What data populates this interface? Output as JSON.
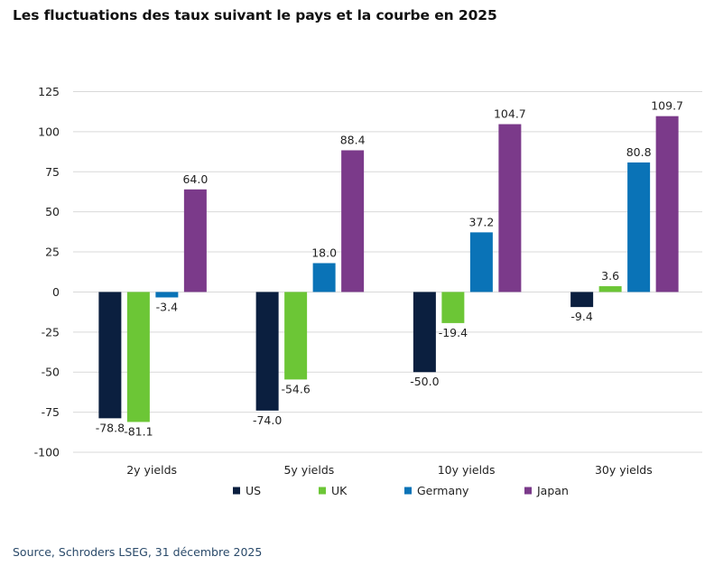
{
  "chart_data": {
    "type": "bar",
    "title": "Les fluctuations des taux suivant le pays et la courbe en 2025",
    "source": "Source, Schroders LSEG, 31 décembre 2025",
    "categories": [
      "2y yields",
      "5y yields",
      "10y yields",
      "30y yields"
    ],
    "series": [
      {
        "name": "US",
        "color": "#0b1f3f",
        "values": [
          -78.8,
          -74.0,
          -50.0,
          -9.4
        ],
        "labels": [
          "-78.8",
          "-74.0",
          "-50.0",
          "-9.4"
        ]
      },
      {
        "name": "UK",
        "color": "#6cc636",
        "values": [
          -81.1,
          -54.6,
          -19.4,
          3.6
        ],
        "labels": [
          "-81.1",
          "-54.6",
          "-19.4",
          "3.6"
        ]
      },
      {
        "name": "Germany",
        "color": "#0a73b7",
        "values": [
          -3.4,
          18.0,
          37.2,
          80.8
        ],
        "labels": [
          "-3.4",
          "18.0",
          "37.2",
          "80.8"
        ]
      },
      {
        "name": "Japan",
        "color": "#7b3a8a",
        "values": [
          64.0,
          88.4,
          104.7,
          109.7
        ],
        "labels": [
          "64.0",
          "88.4",
          "104.7",
          "109.7"
        ]
      }
    ],
    "ylim": [
      -100,
      125
    ],
    "yticks": [
      -100,
      -75,
      -50,
      -25,
      0,
      25,
      50,
      75,
      100,
      125
    ],
    "ytick_labels": [
      "-100",
      "-75",
      "-50",
      "-25",
      "0",
      "25",
      "50",
      "75",
      "100",
      "125"
    ],
    "grid": true,
    "legend": "bottom",
    "xlabel": "",
    "ylabel": ""
  }
}
